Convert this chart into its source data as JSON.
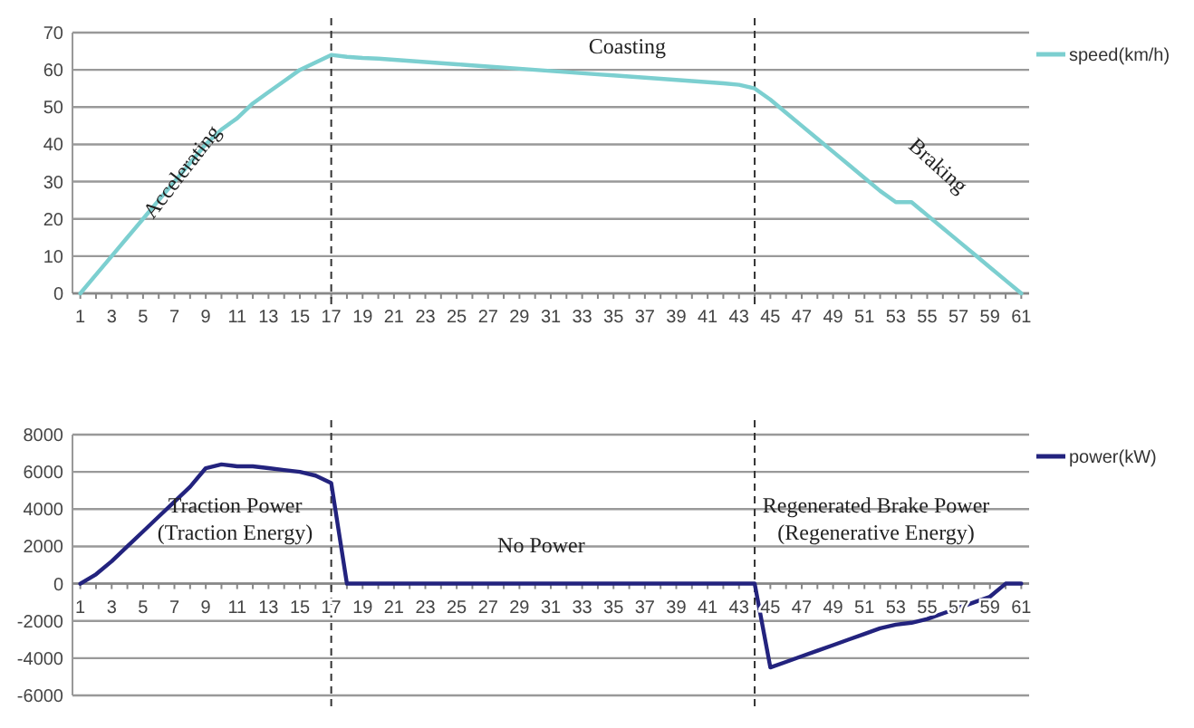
{
  "chart_data": [
    {
      "type": "line",
      "x": [
        1,
        2,
        3,
        4,
        5,
        6,
        7,
        8,
        9,
        10,
        11,
        12,
        13,
        14,
        15,
        16,
        17,
        18,
        19,
        20,
        21,
        22,
        23,
        24,
        25,
        26,
        27,
        28,
        29,
        30,
        31,
        32,
        33,
        34,
        35,
        36,
        37,
        38,
        39,
        40,
        41,
        42,
        43,
        44,
        45,
        46,
        47,
        48,
        49,
        50,
        51,
        52,
        53,
        54,
        55,
        56,
        57,
        58,
        59,
        60,
        61
      ],
      "series": [
        {
          "name": "speed(km/h)",
          "color": "#7ccfd0",
          "values": [
            0,
            5,
            10,
            15,
            20,
            25,
            30,
            35,
            40,
            44,
            47,
            51,
            54,
            57,
            60,
            62,
            64,
            63.5,
            63.2,
            63,
            62.7,
            62.4,
            62.1,
            61.8,
            61.5,
            61.2,
            60.9,
            60.6,
            60.3,
            60,
            59.7,
            59.4,
            59.1,
            58.8,
            58.5,
            58.2,
            57.9,
            57.6,
            57.3,
            57,
            56.7,
            56.4,
            56,
            55,
            52,
            48.5,
            45,
            41.5,
            38,
            34.5,
            31,
            27.5,
            24.5,
            24.5,
            21,
            17.5,
            14,
            10.5,
            7,
            3.5,
            0
          ]
        }
      ],
      "xlim": [
        0.5,
        61.5
      ],
      "xticks": [
        1,
        3,
        5,
        7,
        9,
        11,
        13,
        15,
        17,
        19,
        21,
        23,
        25,
        27,
        29,
        31,
        33,
        35,
        37,
        39,
        41,
        43,
        45,
        47,
        49,
        51,
        53,
        55,
        57,
        59,
        61
      ],
      "ylim": [
        0,
        70
      ],
      "yticks": [
        0,
        10,
        20,
        30,
        40,
        50,
        60,
        70
      ],
      "grid": "y",
      "legend": "top right",
      "ref_lines": [
        {
          "axis": "x",
          "value": 17,
          "color": "#333333",
          "line_style": "dashed"
        },
        {
          "axis": "x",
          "value": 44,
          "color": "#333333",
          "line_style": "dashed"
        }
      ],
      "annotations": [
        "Accelerating",
        "Coasting",
        "Braking"
      ]
    },
    {
      "type": "line",
      "x": [
        1,
        2,
        3,
        4,
        5,
        6,
        7,
        8,
        9,
        10,
        11,
        12,
        13,
        14,
        15,
        16,
        17,
        18,
        19,
        20,
        21,
        22,
        23,
        24,
        25,
        26,
        27,
        28,
        29,
        30,
        31,
        32,
        33,
        34,
        35,
        36,
        37,
        38,
        39,
        40,
        41,
        42,
        43,
        44,
        45,
        46,
        47,
        48,
        49,
        50,
        51,
        52,
        53,
        54,
        55,
        56,
        57,
        58,
        59,
        60,
        61
      ],
      "series": [
        {
          "name": "power(kW)",
          "color": "#23237e",
          "values": [
            0,
            500,
            1200,
            2000,
            2800,
            3600,
            4400,
            5200,
            6200,
            6400,
            6300,
            6300,
            6200,
            6100,
            6000,
            5800,
            5400,
            0,
            0,
            0,
            0,
            0,
            0,
            0,
            0,
            0,
            0,
            0,
            0,
            0,
            0,
            0,
            0,
            0,
            0,
            0,
            0,
            0,
            0,
            0,
            0,
            0,
            0,
            0,
            -4500,
            -4200,
            -3900,
            -3600,
            -3300,
            -3000,
            -2700,
            -2400,
            -2200,
            -2100,
            -1900,
            -1600,
            -1300,
            -1000,
            -700,
            0,
            0
          ]
        }
      ],
      "xlim": [
        0.5,
        61.5
      ],
      "xticks": [
        1,
        3,
        5,
        7,
        9,
        11,
        13,
        15,
        17,
        19,
        21,
        23,
        25,
        27,
        29,
        31,
        33,
        35,
        37,
        39,
        41,
        43,
        45,
        47,
        49,
        51,
        53,
        55,
        57,
        59,
        61
      ],
      "ylim": [
        -6000,
        8000
      ],
      "yticks": [
        -6000,
        -4000,
        -2000,
        0,
        2000,
        4000,
        6000,
        8000
      ],
      "grid": "y",
      "legend": "top right",
      "ref_lines": [
        {
          "axis": "x",
          "value": 17,
          "color": "#333333",
          "line_style": "dashed"
        },
        {
          "axis": "x",
          "value": 44,
          "color": "#333333",
          "line_style": "dashed"
        }
      ],
      "annotations": [
        "Traction Power\n(Traction Energy)",
        "No Power",
        "Regenerated Brake Power\n(Regenerative Energy)"
      ]
    }
  ]
}
